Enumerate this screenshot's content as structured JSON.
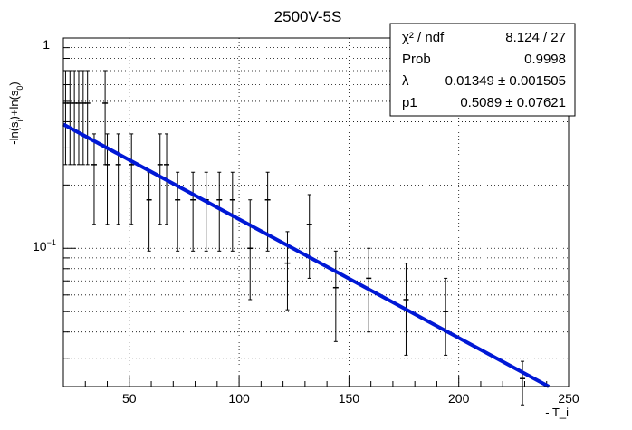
{
  "chart_data": {
    "type": "scatter",
    "title": "2500V-5S",
    "xlabel": "- T_i",
    "ylabel_parts": {
      "main": "-ln(s",
      "sub1": "i",
      "mid": ")+ln(s",
      "sub2": "0",
      "end": ")"
    },
    "xlim": [
      20,
      250
    ],
    "ylim": [
      0.022,
      1.0
    ],
    "y_scale": "log",
    "grid": true,
    "x_ticks": [
      {
        "value": 50,
        "label": "50"
      },
      {
        "value": 100,
        "label": "100"
      },
      {
        "value": 150,
        "label": "150"
      },
      {
        "value": 200,
        "label": "200"
      },
      {
        "value": 250,
        "label": "250"
      }
    ],
    "y_tick_labels": {
      "top": "1",
      "mid_base": "10",
      "mid_exp": "−1"
    },
    "points": [
      {
        "x": 21,
        "y": 0.49,
        "ylow": 0.25,
        "yhigh": 0.7
      },
      {
        "x": 23,
        "y": 0.49,
        "ylow": 0.25,
        "yhigh": 0.7
      },
      {
        "x": 25,
        "y": 0.49,
        "ylow": 0.25,
        "yhigh": 0.7
      },
      {
        "x": 27,
        "y": 0.49,
        "ylow": 0.25,
        "yhigh": 0.7
      },
      {
        "x": 29,
        "y": 0.49,
        "ylow": 0.25,
        "yhigh": 0.7
      },
      {
        "x": 31,
        "y": 0.49,
        "ylow": 0.25,
        "yhigh": 0.7
      },
      {
        "x": 34,
        "y": 0.25,
        "ylow": 0.13,
        "yhigh": 0.35
      },
      {
        "x": 39,
        "y": 0.49,
        "ylow": 0.25,
        "yhigh": 0.7
      },
      {
        "x": 40,
        "y": 0.25,
        "ylow": 0.13,
        "yhigh": 0.35
      },
      {
        "x": 45,
        "y": 0.25,
        "ylow": 0.13,
        "yhigh": 0.35
      },
      {
        "x": 51,
        "y": 0.25,
        "ylow": 0.13,
        "yhigh": 0.35
      },
      {
        "x": 59,
        "y": 0.17,
        "ylow": 0.097,
        "yhigh": 0.23
      },
      {
        "x": 64,
        "y": 0.25,
        "ylow": 0.13,
        "yhigh": 0.35
      },
      {
        "x": 67,
        "y": 0.25,
        "ylow": 0.13,
        "yhigh": 0.35
      },
      {
        "x": 72,
        "y": 0.17,
        "ylow": 0.097,
        "yhigh": 0.23
      },
      {
        "x": 79,
        "y": 0.17,
        "ylow": 0.097,
        "yhigh": 0.23
      },
      {
        "x": 85,
        "y": 0.17,
        "ylow": 0.097,
        "yhigh": 0.23
      },
      {
        "x": 91,
        "y": 0.17,
        "ylow": 0.097,
        "yhigh": 0.23
      },
      {
        "x": 97,
        "y": 0.17,
        "ylow": 0.097,
        "yhigh": 0.23
      },
      {
        "x": 105,
        "y": 0.1,
        "ylow": 0.057,
        "yhigh": 0.17
      },
      {
        "x": 113,
        "y": 0.17,
        "ylow": 0.097,
        "yhigh": 0.23
      },
      {
        "x": 122,
        "y": 0.085,
        "ylow": 0.051,
        "yhigh": 0.12
      },
      {
        "x": 132,
        "y": 0.13,
        "ylow": 0.072,
        "yhigh": 0.18
      },
      {
        "x": 144,
        "y": 0.065,
        "ylow": 0.036,
        "yhigh": 0.097
      },
      {
        "x": 159,
        "y": 0.072,
        "ylow": 0.04,
        "yhigh": 0.1
      },
      {
        "x": 176,
        "y": 0.057,
        "ylow": 0.031,
        "yhigh": 0.085
      },
      {
        "x": 194,
        "y": 0.05,
        "ylow": 0.031,
        "yhigh": 0.072
      },
      {
        "x": 229,
        "y": 0.024,
        "ylow": 0.018,
        "yhigh": 0.029
      }
    ],
    "fit_line": {
      "lambda": 0.01349,
      "p1": 0.5089,
      "x_start": 20,
      "x_end": 241,
      "color": "#0018d6"
    },
    "stats_box": [
      {
        "label": "χ² / ndf",
        "value": "8.124 / 27"
      },
      {
        "label": "Prob",
        "value": "0.9998"
      },
      {
        "label": "λ",
        "value": "0.01349 ± 0.001505"
      },
      {
        "label": "p1",
        "value": "0.5089 ± 0.07621"
      }
    ]
  }
}
